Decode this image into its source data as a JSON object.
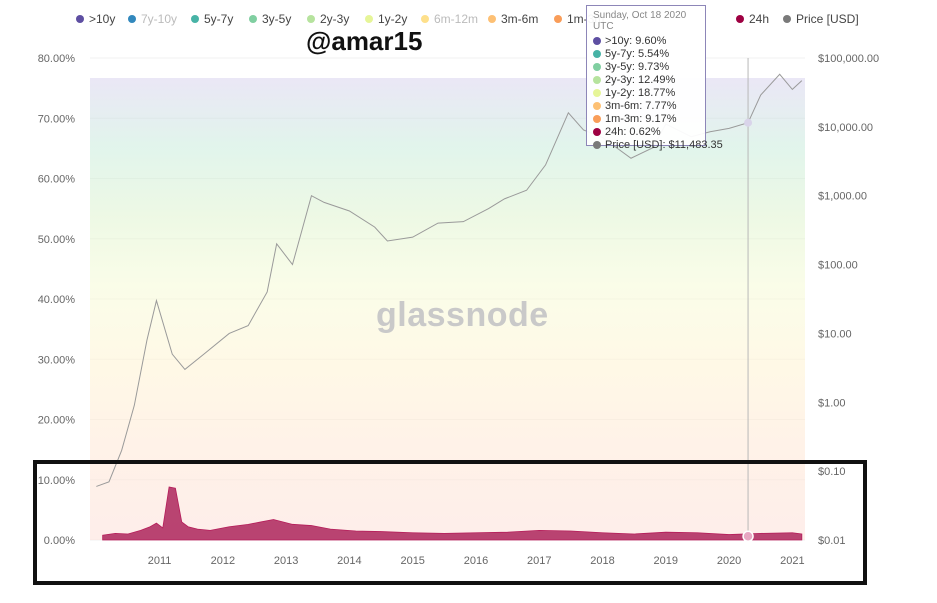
{
  "legend": [
    {
      "label": ">10y",
      "color": "#5e4fa2",
      "faded": false
    },
    {
      "label": "7y-10y",
      "color": "#3288bd",
      "faded": true
    },
    {
      "label": "5y-7y",
      "color": "#47b3a6",
      "faded": false
    },
    {
      "label": "3y-5y",
      "color": "#80cfa1",
      "faded": false
    },
    {
      "label": "2y-3y",
      "color": "#b6e39e",
      "faded": false
    },
    {
      "label": "1y-2y",
      "color": "#e6f598",
      "faded": false
    },
    {
      "label": "6m-12m",
      "color": "#fee08b",
      "faded": true
    },
    {
      "label": "3m-6m",
      "color": "#fdc074",
      "faded": false
    },
    {
      "label": "1m-3m",
      "color": "#f99d59",
      "faded": false
    },
    {
      "label": "24h",
      "color": "#9e0142",
      "faded": false
    },
    {
      "label": "Price [USD]",
      "color": "#7a7a7a",
      "faded": false
    }
  ],
  "author_tag": "@amar15",
  "watermark": "glassnode",
  "tooltip": {
    "date": "Sunday, Oct 18 2020 UTC",
    "rows": [
      {
        "label": ">10y:",
        "value": "9.60%",
        "color": "#5e4fa2"
      },
      {
        "label": "5y-7y:",
        "value": "5.54%",
        "color": "#47b3a6"
      },
      {
        "label": "3y-5y:",
        "value": "9.73%",
        "color": "#80cfa1"
      },
      {
        "label": "2y-3y:",
        "value": "12.49%",
        "color": "#b6e39e"
      },
      {
        "label": "1y-2y:",
        "value": "18.77%",
        "color": "#e6f598"
      },
      {
        "label": "3m-6m:",
        "value": "7.77%",
        "color": "#fdc074"
      },
      {
        "label": "1m-3m:",
        "value": "9.17%",
        "color": "#f99d59"
      },
      {
        "label": "24h:",
        "value": "0.62%",
        "color": "#9e0142"
      },
      {
        "label": "Price [USD]:",
        "value": "$11,483.35",
        "color": "#7a7a7a"
      }
    ]
  },
  "chart_data": {
    "type": "area",
    "x_ticks": [
      "2011",
      "2012",
      "2013",
      "2014",
      "2015",
      "2016",
      "2017",
      "2018",
      "2019",
      "2020",
      "2021"
    ],
    "xlim": [
      2010.4,
      2021.7
    ],
    "y_left_ticks": [
      "0.00%",
      "10.00%",
      "20.00%",
      "30.00%",
      "40.00%",
      "50.00%",
      "60.00%",
      "70.00%",
      "80.00%"
    ],
    "y_left_range": [
      0,
      80
    ],
    "y_right_ticks": [
      "$0.01",
      "$0.10",
      "$1.00",
      "$10.00",
      "$100.00",
      "$1,000.00",
      "$10,000.00",
      "$100,000.00"
    ],
    "y_right_log_range": [
      0.01,
      100000
    ],
    "stack_order": [
      ">10y",
      "7y-10y",
      "5y-7y",
      "3y-5y",
      "2y-3y",
      "1y-2y",
      "6m-12m",
      "3m-6m",
      "1m-3m",
      "24h"
    ],
    "series_24h": {
      "name": "24h",
      "color": "#9e0142",
      "x": [
        2010.6,
        2010.8,
        2011.0,
        2011.2,
        2011.35,
        2011.45,
        2011.55,
        2011.65,
        2011.75,
        2011.85,
        2011.95,
        2012.1,
        2012.3,
        2012.6,
        2012.9,
        2013.1,
        2013.3,
        2013.6,
        2013.9,
        2014.2,
        2014.6,
        2015.0,
        2015.5,
        2016.0,
        2016.5,
        2017.0,
        2017.5,
        2018.0,
        2018.5,
        2019.0,
        2019.5,
        2020.0,
        2020.5,
        2021.0,
        2021.5,
        2021.65
      ],
      "y": [
        0.8,
        1.1,
        1.0,
        1.6,
        2.2,
        2.8,
        2.0,
        8.8,
        8.6,
        3.0,
        2.2,
        1.8,
        1.6,
        2.2,
        2.6,
        3.0,
        3.4,
        2.6,
        2.4,
        1.8,
        1.5,
        1.4,
        1.2,
        1.1,
        1.2,
        1.3,
        1.6,
        1.5,
        1.2,
        1.0,
        1.3,
        1.2,
        0.9,
        1.1,
        1.2,
        1.0
      ]
    },
    "price_usd": {
      "name": "Price [USD]",
      "color": "#9a9a9a",
      "x": [
        2010.5,
        2010.7,
        2010.9,
        2011.1,
        2011.3,
        2011.45,
        2011.7,
        2011.9,
        2012.2,
        2012.6,
        2012.9,
        2013.2,
        2013.35,
        2013.6,
        2013.9,
        2014.1,
        2014.5,
        2014.9,
        2015.1,
        2015.5,
        2015.9,
        2016.3,
        2016.7,
        2016.95,
        2017.3,
        2017.6,
        2017.96,
        2018.2,
        2018.5,
        2018.95,
        2019.3,
        2019.5,
        2019.9,
        2020.2,
        2020.5,
        2020.8,
        2021.0,
        2021.3,
        2021.5,
        2021.65
      ],
      "y": [
        0.06,
        0.07,
        0.2,
        0.9,
        8,
        30,
        5,
        3,
        5,
        10,
        13,
        40,
        200,
        100,
        1000,
        800,
        600,
        350,
        220,
        250,
        400,
        420,
        650,
        900,
        1200,
        2800,
        16000,
        9000,
        7000,
        3500,
        5000,
        11000,
        7200,
        8500,
        9500,
        11483.35,
        29000,
        58000,
        35000,
        47000
      ]
    },
    "hover_x": 2020.8,
    "hover_price": 11483.35,
    "hover_24h": 0.62
  }
}
